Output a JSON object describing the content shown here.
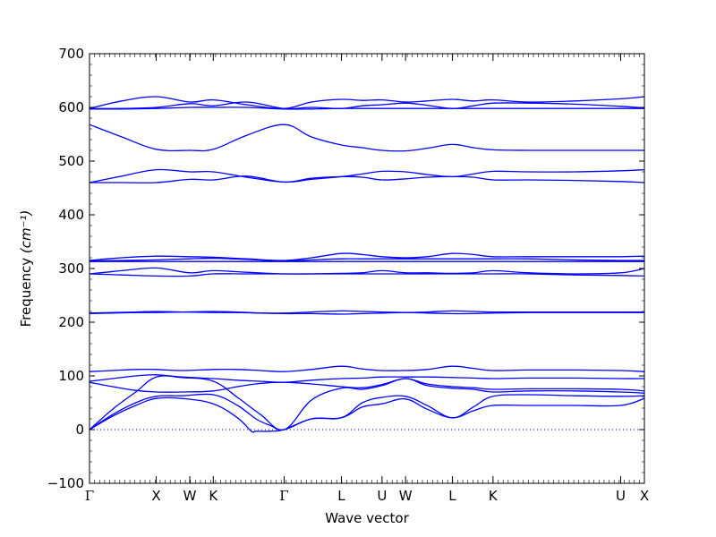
{
  "chart_data": {
    "type": "line",
    "title": "",
    "xlabel": "Wave vector",
    "ylabel": "Frequency",
    "ylabel_unit": "(cm⁻¹)",
    "ylim": [
      -100,
      700
    ],
    "yticks": [
      -100,
      0,
      100,
      200,
      300,
      400,
      500,
      600,
      700
    ],
    "xlim": [
      0,
      12
    ],
    "xticks": [
      {
        "label": "Γ",
        "x": 0
      },
      {
        "label": "X",
        "x": 1.443
      },
      {
        "label": "W",
        "x": 2.169
      },
      {
        "label": "K",
        "x": 2.677
      },
      {
        "label": "Γ",
        "x": 4.21
      },
      {
        "label": "L",
        "x": 5.448
      },
      {
        "label": "U",
        "x": 6.326
      },
      {
        "label": "W",
        "x": 6.835
      },
      {
        "label": "L",
        "x": 7.847
      },
      {
        "label": "K",
        "x": 8.726
      },
      {
        "label": "U",
        "x": 11.487
      },
      {
        "label": "X",
        "x": 12
      }
    ],
    "grid": false,
    "legend": "none",
    "colors": {
      "bands": "#0000ff",
      "zero_line": "#0000ff"
    },
    "zero_line": {
      "y": 0,
      "style": "dotted"
    },
    "series": [
      {
        "x": [
          0,
          0.5,
          1.0,
          1.443,
          2.0,
          2.677,
          3.2,
          3.5,
          3.6,
          3.9,
          4.21,
          4.8,
          5.448,
          5.9,
          6.326,
          6.835,
          7.3,
          7.847,
          8.3,
          8.726,
          9.5,
          10.5,
          11.487,
          12
        ],
        "values": [
          0,
          25,
          45,
          58,
          58,
          48,
          22,
          -3,
          -3,
          -3,
          0,
          20,
          22,
          42,
          48,
          57,
          38,
          22,
          35,
          45,
          45,
          45,
          45,
          58
        ]
      },
      {
        "x": [
          0,
          0.5,
          1.0,
          1.443,
          2.0,
          2.677,
          3.2,
          3.6,
          3.9,
          4.21,
          4.8,
          5.448,
          5.9,
          6.326,
          6.835,
          7.3,
          7.847,
          8.3,
          8.726,
          9.5,
          10.5,
          11.487,
          12
        ],
        "values": [
          0,
          28,
          50,
          62,
          63,
          65,
          45,
          20,
          8,
          0,
          20,
          22,
          50,
          60,
          62,
          45,
          22,
          42,
          62,
          65,
          63,
          62,
          63
        ]
      },
      {
        "x": [
          0,
          0.5,
          1.0,
          1.443,
          2.0,
          2.677,
          3.2,
          3.7,
          4.21,
          4.8,
          5.448,
          5.9,
          6.326,
          6.835,
          7.3,
          7.847,
          8.3,
          8.726,
          9.5,
          10.5,
          11.487,
          12
        ],
        "values": [
          0,
          38,
          70,
          98,
          97,
          90,
          60,
          28,
          0,
          55,
          77,
          75,
          82,
          95,
          82,
          77,
          75,
          70,
          72,
          72,
          70,
          68
        ]
      },
      {
        "x": [
          0,
          0.5,
          1.0,
          1.443,
          2.0,
          2.677,
          3.2,
          3.7,
          4.21,
          4.8,
          5.448,
          5.9,
          6.326,
          6.835,
          7.3,
          7.847,
          8.3,
          8.726,
          9.5,
          10.5,
          11.487,
          12
        ],
        "values": [
          88,
          80,
          73,
          70,
          70,
          72,
          80,
          86,
          88,
          85,
          80,
          78,
          84,
          95,
          85,
          80,
          78,
          75,
          76,
          76,
          75,
          72
        ]
      },
      {
        "x": [
          0,
          0.5,
          1.0,
          1.443,
          2.0,
          2.677,
          3.2,
          3.7,
          4.21,
          4.8,
          5.448,
          5.9,
          6.326,
          6.835,
          7.3,
          7.847,
          8.3,
          8.726,
          9.5,
          10.5,
          11.487,
          12
        ],
        "values": [
          90,
          95,
          100,
          102,
          98,
          95,
          92,
          90,
          88,
          92,
          95,
          96,
          98,
          98,
          98,
          97,
          96,
          95,
          96,
          96,
          95,
          95
        ]
      },
      {
        "x": [
          0,
          0.5,
          1.0,
          1.443,
          2.0,
          2.677,
          3.2,
          3.7,
          4.21,
          4.8,
          5.448,
          5.9,
          6.326,
          6.835,
          7.3,
          7.847,
          8.3,
          8.726,
          9.5,
          10.5,
          11.487,
          12
        ],
        "values": [
          108,
          110,
          112,
          112,
          110,
          112,
          112,
          110,
          108,
          112,
          118,
          113,
          110,
          110,
          112,
          118,
          114,
          110,
          111,
          111,
          110,
          108
        ]
      },
      {
        "x": [
          0,
          0.5,
          1.0,
          1.443,
          2.0,
          2.677,
          3.2,
          3.7,
          4.21,
          4.8,
          5.448,
          5.9,
          6.326,
          6.835,
          7.3,
          7.847,
          8.3,
          8.726,
          9.5,
          10.5,
          11.487,
          12
        ],
        "values": [
          217,
          218,
          219,
          220,
          219,
          218,
          218,
          217,
          217,
          219,
          221,
          220,
          219,
          218,
          219,
          221,
          220,
          219,
          219,
          219,
          219,
          219
        ]
      },
      {
        "x": [
          0,
          0.5,
          1.0,
          1.443,
          2.0,
          2.677,
          3.2,
          3.7,
          4.21,
          4.8,
          5.448,
          5.9,
          6.326,
          6.835,
          7.3,
          7.847,
          8.3,
          8.726,
          9.5,
          10.5,
          11.487,
          12
        ],
        "values": [
          216,
          217,
          218,
          218,
          219,
          220,
          219,
          217,
          216,
          216,
          215,
          216,
          217,
          218,
          217,
          216,
          216,
          217,
          218,
          218,
          218,
          218
        ]
      },
      {
        "x": [
          0,
          0.7,
          1.443,
          2.169,
          2.677,
          3.4,
          4.21,
          4.8,
          5.448,
          5.9,
          6.326,
          6.835,
          7.3,
          7.847,
          8.3,
          8.726,
          9.5,
          10.5,
          11.487,
          12
        ],
        "values": [
          290,
          296,
          301,
          292,
          296,
          293,
          290,
          290,
          291,
          292,
          296,
          292,
          292,
          291,
          292,
          296,
          292,
          290,
          292,
          300
        ]
      },
      {
        "x": [
          0,
          0.7,
          1.443,
          2.169,
          2.677,
          3.4,
          4.21,
          4.8,
          5.448,
          5.9,
          6.326,
          6.835,
          7.3,
          7.847,
          8.3,
          8.726,
          9.5,
          10.5,
          11.487,
          12
        ],
        "values": [
          290,
          288,
          286,
          286,
          290,
          290,
          290,
          290,
          290,
          290,
          290,
          290,
          290,
          290,
          290,
          290,
          290,
          288,
          287,
          286
        ]
      },
      {
        "x": [
          0,
          0.7,
          1.443,
          2.169,
          2.677,
          3.4,
          4.21,
          4.8,
          5.448,
          5.9,
          6.326,
          6.835,
          7.3,
          7.847,
          8.3,
          8.726,
          9.5,
          10.5,
          11.487,
          12
        ],
        "values": [
          315,
          320,
          323,
          322,
          321,
          318,
          315,
          320,
          328,
          326,
          322,
          320,
          322,
          328,
          326,
          322,
          322,
          322,
          322,
          323
        ]
      },
      {
        "x": [
          0,
          0.7,
          1.443,
          2.169,
          2.677,
          3.4,
          4.21,
          4.8,
          5.448,
          5.9,
          6.326,
          6.835,
          7.3,
          7.847,
          8.3,
          8.726,
          9.5,
          10.5,
          11.487,
          12
        ],
        "values": [
          314,
          315,
          316,
          318,
          319,
          317,
          314,
          316,
          318,
          318,
          318,
          318,
          318,
          318,
          318,
          318,
          318,
          316,
          315,
          315
        ]
      },
      {
        "x": [
          0,
          0.7,
          1.443,
          2.169,
          2.677,
          3.4,
          4.21,
          4.8,
          5.448,
          5.9,
          6.326,
          6.835,
          7.3,
          7.847,
          8.3,
          8.726,
          9.5,
          10.5,
          11.487,
          12
        ],
        "values": [
          313,
          313,
          313,
          313,
          313,
          313,
          313,
          313,
          313,
          313,
          313,
          313,
          313,
          313,
          313,
          313,
          313,
          313,
          313,
          313
        ]
      },
      {
        "x": [
          0,
          0.7,
          1.443,
          2.169,
          2.677,
          3.4,
          4.21,
          4.8,
          5.448,
          5.9,
          6.326,
          6.835,
          7.3,
          7.847,
          8.3,
          8.726,
          9.5,
          10.5,
          11.487,
          12
        ],
        "values": [
          460,
          472,
          484,
          480,
          480,
          470,
          461,
          466,
          471,
          476,
          481,
          480,
          475,
          471,
          476,
          481,
          480,
          480,
          482,
          484
        ]
      },
      {
        "x": [
          0,
          0.7,
          1.443,
          2.169,
          2.677,
          3.4,
          4.21,
          4.8,
          5.448,
          5.9,
          6.326,
          6.835,
          7.3,
          7.847,
          8.3,
          8.726,
          9.5,
          10.5,
          11.487,
          12
        ],
        "values": [
          460,
          460,
          460,
          466,
          465,
          472,
          461,
          468,
          471,
          470,
          465,
          467,
          470,
          471,
          470,
          465,
          465,
          464,
          462,
          460
        ]
      },
      {
        "x": [
          0,
          0.7,
          1.443,
          2.169,
          2.677,
          3.4,
          4.21,
          4.8,
          5.448,
          5.9,
          6.326,
          6.835,
          7.3,
          7.847,
          8.3,
          8.726,
          9.5,
          10.5,
          11.487,
          12
        ],
        "values": [
          568,
          545,
          522,
          520,
          522,
          548,
          568,
          545,
          530,
          525,
          520,
          519,
          524,
          531,
          525,
          521,
          520,
          520,
          520,
          520
        ]
      },
      {
        "x": [
          0,
          0.7,
          1.443,
          2.169,
          2.677,
          3.4,
          4.21,
          4.8,
          5.448,
          5.9,
          6.326,
          6.835,
          7.3,
          7.847,
          8.3,
          8.726,
          9.5,
          10.5,
          11.487,
          12
        ],
        "values": [
          598,
          612,
          620,
          610,
          614,
          605,
          598,
          610,
          615,
          613,
          614,
          610,
          612,
          615,
          612,
          614,
          610,
          612,
          616,
          620
        ]
      },
      {
        "x": [
          0,
          0.7,
          1.443,
          2.169,
          2.677,
          3.4,
          4.21,
          4.8,
          5.448,
          5.9,
          6.326,
          6.835,
          7.3,
          7.847,
          8.3,
          8.726,
          9.5,
          10.5,
          11.487,
          12
        ],
        "values": [
          598,
          598,
          600,
          607,
          603,
          610,
          598,
          600,
          598,
          603,
          605,
          608,
          604,
          598,
          603,
          608,
          608,
          606,
          602,
          599
        ]
      },
      {
        "x": [
          0,
          0.7,
          1.443,
          2.169,
          2.677,
          3.4,
          4.21,
          4.8,
          5.448,
          5.9,
          6.326,
          6.835,
          7.3,
          7.847,
          8.3,
          8.726,
          9.5,
          10.5,
          11.487,
          12
        ],
        "values": [
          597,
          597,
          598,
          600,
          600,
          600,
          597,
          597,
          598,
          598,
          598,
          598,
          598,
          598,
          598,
          598,
          598,
          598,
          598,
          598
        ]
      }
    ]
  }
}
